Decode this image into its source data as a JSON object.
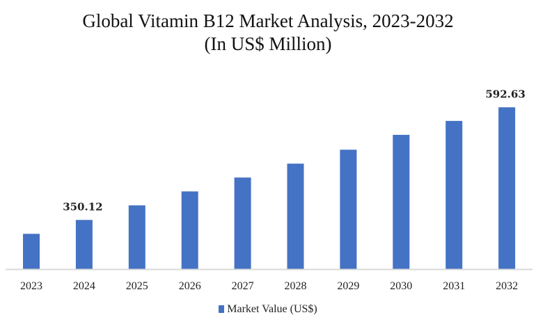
{
  "chart_data": {
    "type": "bar",
    "title": "Global Vitamin B12 Market Analysis, 2023-2032",
    "subtitle": "(In US$ Million)",
    "categories": [
      "2023",
      "2024",
      "2025",
      "2026",
      "2027",
      "2028",
      "2029",
      "2030",
      "2031",
      "2032"
    ],
    "series": [
      {
        "name": "Market Value (US$)",
        "values": [
          320.2,
          350.12,
          381.5,
          411.5,
          441.4,
          471.3,
          501.3,
          533.3,
          563.3,
          592.63
        ],
        "color": "#4472C4"
      }
    ],
    "data_labels": [
      {
        "category": "2024",
        "text": "350.12"
      },
      {
        "category": "2032",
        "text": "592.63"
      }
    ],
    "ylim": [
      245,
      600
    ],
    "xlabel": "",
    "ylabel": "",
    "grid": false,
    "legend_placement": "bottom",
    "axis_color": "#D9D9D9"
  }
}
